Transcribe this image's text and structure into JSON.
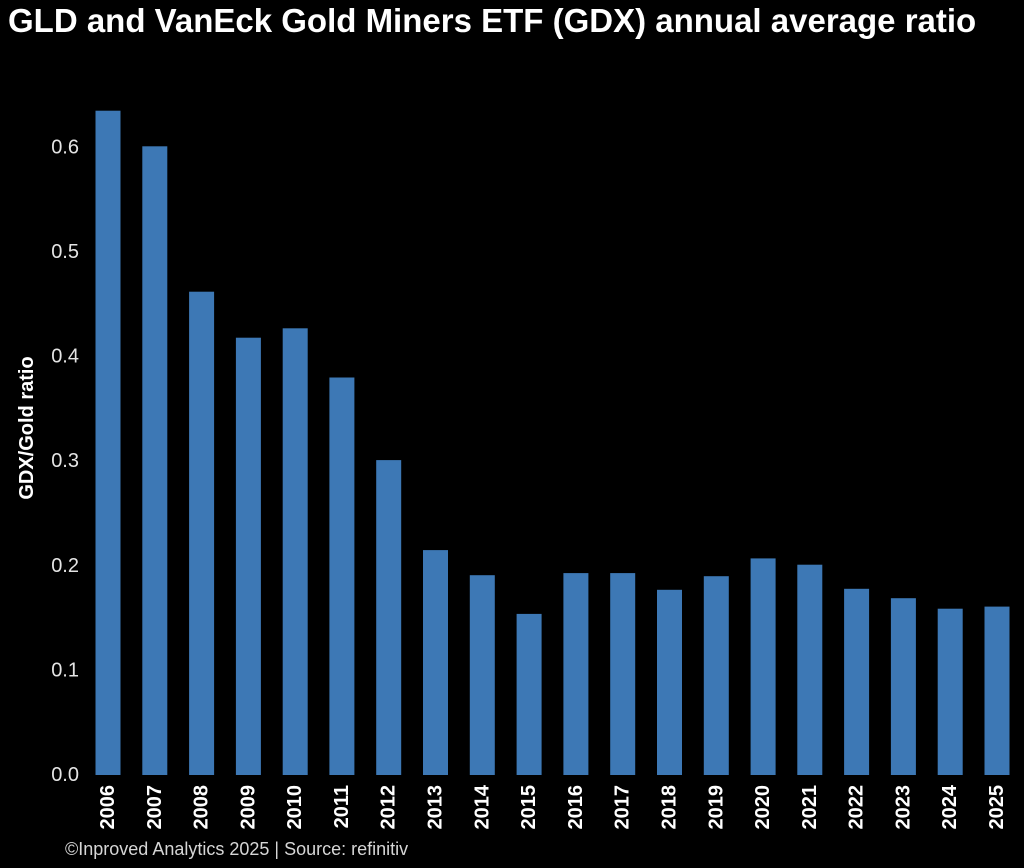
{
  "chart_data": {
    "type": "bar",
    "title": "GLD and VanEck Gold Miners ETF (GDX) annual average ratio",
    "xlabel": "",
    "ylabel": "GDX/Gold ratio",
    "categories": [
      "2006",
      "2007",
      "2008",
      "2009",
      "2010",
      "2011",
      "2012",
      "2013",
      "2014",
      "2015",
      "2016",
      "2017",
      "2018",
      "2019",
      "2020",
      "2021",
      "2022",
      "2023",
      "2024",
      "2025"
    ],
    "values": [
      0.635,
      0.601,
      0.462,
      0.418,
      0.427,
      0.38,
      0.301,
      0.215,
      0.191,
      0.154,
      0.193,
      0.193,
      0.177,
      0.19,
      0.207,
      0.201,
      0.178,
      0.169,
      0.159,
      0.161
    ],
    "ylim": [
      0,
      0.65
    ],
    "yticks": [
      0.0,
      0.1,
      0.2,
      0.3,
      0.4,
      0.5,
      0.6
    ],
    "ytick_labels": [
      "0.0",
      "0.1",
      "0.2",
      "0.3",
      "0.4",
      "0.5",
      "0.6"
    ],
    "grid": false
  },
  "colors": {
    "bar": "#3d78b5",
    "background": "#000000",
    "text": "#ffffff"
  },
  "footer": {
    "credit": "©Inproved Analytics 2025 | Source: refinitiv"
  }
}
